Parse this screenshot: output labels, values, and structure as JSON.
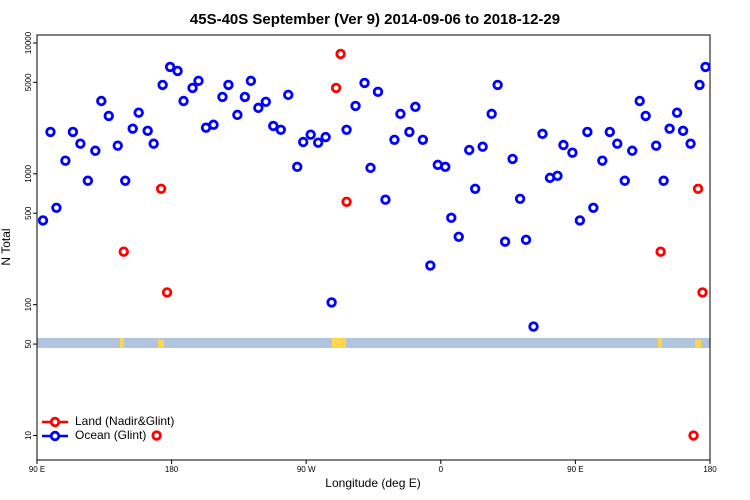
{
  "chart_data": {
    "type": "scatter",
    "title": "45S-40S September (Ver 9)   2014-09-06 to 2018-12-29",
    "x_label": "Longitude (deg E)",
    "y_label": "N Total",
    "log_y": true,
    "legend": "lower left",
    "xlim": [
      90,
      540
    ],
    "ylim": [
      6.5,
      11500
    ],
    "xticks": [
      {
        "value": 90,
        "label": "90 E"
      },
      180,
      {
        "value": 270,
        "label": "90 W"
      },
      {
        "value": 360,
        "label": "0"
      },
      {
        "value": 450,
        "label": "90 E"
      },
      {
        "value": 540,
        "label": "180"
      }
    ],
    "yticks": [
      10,
      50,
      100,
      500,
      1000,
      5000,
      10000
    ],
    "series": [
      {
        "name": "Land (Nadir&Glint)",
        "color": "#ff0000",
        "x": [
          148,
          170,
          173,
          177,
          290,
          293,
          297,
          507,
          529,
          532,
          535
        ],
        "values": [
          254,
          10,
          768,
          124,
          4530,
          8240,
          611,
          254,
          10,
          768,
          124
        ]
      },
      {
        "name": "Ocean (Glint)",
        "color": "#0000ff",
        "x": [
          94,
          99,
          103,
          109,
          114,
          119,
          124,
          129,
          133,
          138,
          144,
          149,
          154,
          158,
          164,
          168,
          174,
          179,
          184,
          188,
          194,
          198,
          203,
          208,
          214,
          218,
          224,
          229,
          233,
          238,
          243,
          248,
          253,
          258,
          264,
          268,
          273,
          278,
          283,
          287,
          297,
          303,
          309,
          313,
          318,
          323,
          329,
          333,
          339,
          343,
          348,
          353,
          358,
          363,
          367,
          372,
          379,
          383,
          388,
          394,
          398,
          403,
          408,
          413,
          417,
          422,
          428,
          433,
          438,
          442,
          448,
          453,
          458,
          462,
          468,
          473,
          478,
          483,
          488,
          493,
          497,
          504,
          509,
          513,
          518,
          522,
          527,
          533,
          537
        ],
        "values": [
          440,
          2090,
          550,
          1260,
          2090,
          1700,
          885,
          1500,
          3600,
          2770,
          1640,
          885,
          2210,
          2930,
          2130,
          1700,
          4780,
          6560,
          6110,
          3600,
          4530,
          5130,
          2250,
          2370,
          3870,
          4780,
          2820,
          3870,
          5130,
          3190,
          3550,
          2320,
          2170,
          4010,
          1130,
          1750,
          1990,
          1730,
          1910,
          104,
          2170,
          3300,
          4950,
          1110,
          4230,
          634,
          1820,
          2870,
          2090,
          3250,
          1820,
          199,
          1170,
          1130,
          461,
          330,
          1520,
          768,
          1610,
          2870,
          4780,
          303,
          1300,
          644,
          313,
          68,
          2020,
          931,
          965,
          1660,
          1450,
          440,
          2090,
          550,
          1260,
          2090,
          1700,
          885,
          1500,
          3600,
          2770,
          1640,
          885,
          2210,
          2930,
          2130,
          1700,
          4780,
          6560
        ]
      }
    ]
  }
}
